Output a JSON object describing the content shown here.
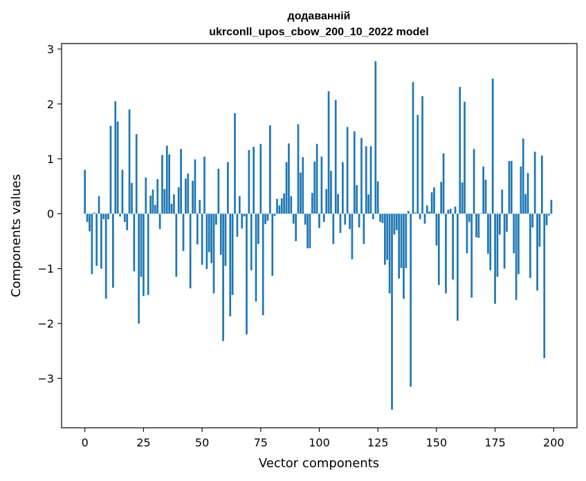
{
  "chart_data": {
    "type": "bar",
    "title": "додаванній",
    "subtitle": "ukrconll_upos_cbow_200_10_2022 model",
    "xlabel": "Vector components",
    "ylabel": "Components values",
    "xlim": [
      -9.95,
      209.95
    ],
    "ylim": [
      -3.9,
      3.1
    ],
    "xticks": [
      0,
      25,
      50,
      75,
      100,
      125,
      150,
      175,
      200
    ],
    "xtick_labels": [
      "0",
      "25",
      "50",
      "75",
      "100",
      "125",
      "150",
      "175",
      "200"
    ],
    "yticks": [
      -3,
      -2,
      -1,
      0,
      1,
      2,
      3
    ],
    "ytick_labels": [
      "−3",
      "−2",
      "−1",
      "0",
      "1",
      "2",
      "3"
    ],
    "grid": false,
    "bar_color": "#1f77b4",
    "x": [
      0,
      1,
      2,
      3,
      4,
      5,
      6,
      7,
      8,
      9,
      10,
      11,
      12,
      13,
      14,
      15,
      16,
      17,
      18,
      19,
      20,
      21,
      22,
      23,
      24,
      25,
      26,
      27,
      28,
      29,
      30,
      31,
      32,
      33,
      34,
      35,
      36,
      37,
      38,
      39,
      40,
      41,
      42,
      43,
      44,
      45,
      46,
      47,
      48,
      49,
      50,
      51,
      52,
      53,
      54,
      55,
      56,
      57,
      58,
      59,
      60,
      61,
      62,
      63,
      64,
      65,
      66,
      67,
      68,
      69,
      70,
      71,
      72,
      73,
      74,
      75,
      76,
      77,
      78,
      79,
      80,
      81,
      82,
      83,
      84,
      85,
      86,
      87,
      88,
      89,
      90,
      91,
      92,
      93,
      94,
      95,
      96,
      97,
      98,
      99,
      100,
      101,
      102,
      103,
      104,
      105,
      106,
      107,
      108,
      109,
      110,
      111,
      112,
      113,
      114,
      115,
      116,
      117,
      118,
      119,
      120,
      121,
      122,
      123,
      124,
      125,
      126,
      127,
      128,
      129,
      130,
      131,
      132,
      133,
      134,
      135,
      136,
      137,
      138,
      139,
      140,
      141,
      142,
      143,
      144,
      145,
      146,
      147,
      148,
      149,
      150,
      151,
      152,
      153,
      154,
      155,
      156,
      157,
      158,
      159,
      160,
      161,
      162,
      163,
      164,
      165,
      166,
      167,
      168,
      169,
      170,
      171,
      172,
      173,
      174,
      175,
      176,
      177,
      178,
      179,
      180,
      181,
      182,
      183,
      184,
      185,
      186,
      187,
      188,
      189,
      190,
      191,
      192,
      193,
      194,
      195,
      196,
      197,
      198,
      199
    ],
    "values": [
      0.8,
      -0.15,
      -0.32,
      -1.1,
      0.02,
      -0.95,
      0.32,
      -1.0,
      -0.1,
      -1.55,
      -0.1,
      1.6,
      -1.35,
      2.05,
      1.68,
      -0.05,
      0.8,
      -0.15,
      -0.3,
      1.9,
      0.56,
      -1.05,
      1.45,
      -2.0,
      -1.15,
      -1.5,
      0.66,
      -1.48,
      0.33,
      0.44,
      0.16,
      0.63,
      -0.28,
      1.07,
      0.45,
      1.24,
      1.08,
      0.18,
      0.35,
      -1.15,
      0.48,
      1.18,
      -0.68,
      0.64,
      0.73,
      -1.36,
      0.6,
      0.99,
      -0.56,
      0.25,
      -0.93,
      1.04,
      -1.01,
      -0.7,
      -0.9,
      -1.45,
      -0.2,
      0.82,
      -0.75,
      -2.32,
      -0.95,
      0.94,
      -1.87,
      -1.48,
      1.83,
      -0.42,
      0.32,
      -0.27,
      -0.05,
      -2.2,
      1.16,
      -1.03,
      1.22,
      -1.6,
      -0.55,
      1.27,
      -1.85,
      -0.19,
      -0.13,
      1.61,
      -1.13,
      -0.04,
      0.27,
      0.15,
      0.28,
      0.37,
      0.94,
      1.28,
      0.32,
      -0.18,
      -0.5,
      1.63,
      0.75,
      1.03,
      -0.2,
      -0.63,
      -0.63,
      0.38,
      0.95,
      1.27,
      -0.26,
      1.04,
      -0.15,
      0.45,
      2.23,
      0.78,
      -0.55,
      2.07,
      0.36,
      -0.35,
      0.94,
      -0.2,
      1.58,
      -0.28,
      -0.83,
      1.5,
      0.52,
      -0.25,
      1.38,
      -0.55,
      1.23,
      0.35,
      1.23,
      -0.1,
      2.78,
      0.59,
      -0.15,
      -0.17,
      -0.93,
      -0.84,
      -1.45,
      -3.57,
      -0.38,
      -0.3,
      -1.18,
      -0.99,
      -1.55,
      -0.99,
      0.05,
      -3.15,
      2.4,
      0.02,
      1.8,
      -0.1,
      2.14,
      -0.18,
      0.15,
      0.04,
      0.39,
      0.48,
      -0.58,
      -1.3,
      0.58,
      1.1,
      -1.45,
      0.07,
      0.09,
      -1.2,
      0.13,
      -1.95,
      2.31,
      0.57,
      2.04,
      -0.72,
      -0.15,
      -1.53,
      1.18,
      -0.43,
      -0.44,
      0.01,
      0.86,
      0.62,
      -0.73,
      -1.03,
      2.46,
      -1.64,
      -1.15,
      -0.38,
      0.44,
      -1.0,
      -0.33,
      0.96,
      0.96,
      -0.72,
      -1.57,
      -1.1,
      0.86,
      1.37,
      0.36,
      0.74,
      -1.17,
      -0.25,
      1.13,
      -1.4,
      -0.6,
      1.06,
      -2.63,
      -0.21,
      -0.03,
      0.25
    ]
  }
}
